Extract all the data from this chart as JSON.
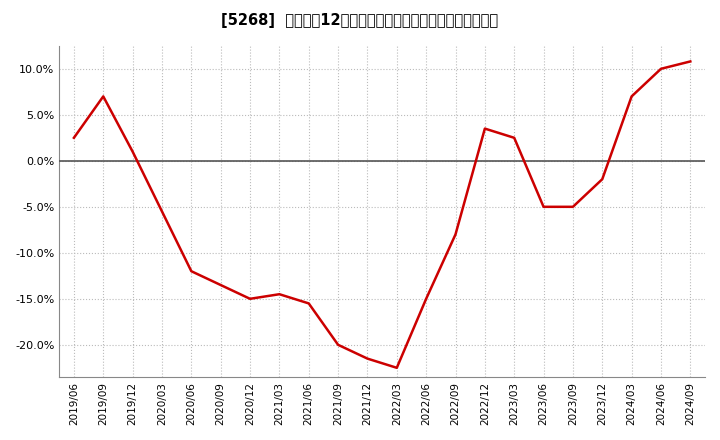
{
  "title": "[5268]  売上高の12か月移動合計の対前年同期増減率の推移",
  "line_color": "#cc0000",
  "background_color": "#ffffff",
  "plot_background": "#ffffff",
  "grid_color": "#bbbbbb",
  "zero_line_color": "#555555",
  "ylim": [
    -0.235,
    0.125
  ],
  "yticks": [
    -0.2,
    -0.15,
    -0.1,
    -0.05,
    0.0,
    0.05,
    0.1
  ],
  "dates": [
    "2019/06",
    "2019/09",
    "2019/12",
    "2020/03",
    "2020/06",
    "2020/09",
    "2020/12",
    "2021/03",
    "2021/06",
    "2021/09",
    "2021/12",
    "2022/03",
    "2022/06",
    "2022/09",
    "2022/12",
    "2023/03",
    "2023/06",
    "2023/09",
    "2023/12",
    "2024/03",
    "2024/06",
    "2024/09"
  ],
  "values": [
    0.025,
    0.07,
    0.01,
    -0.055,
    -0.12,
    -0.135,
    -0.15,
    -0.145,
    -0.155,
    -0.2,
    -0.215,
    -0.225,
    -0.15,
    -0.08,
    0.035,
    0.025,
    -0.05,
    -0.05,
    -0.02,
    0.07,
    0.1,
    0.108
  ]
}
